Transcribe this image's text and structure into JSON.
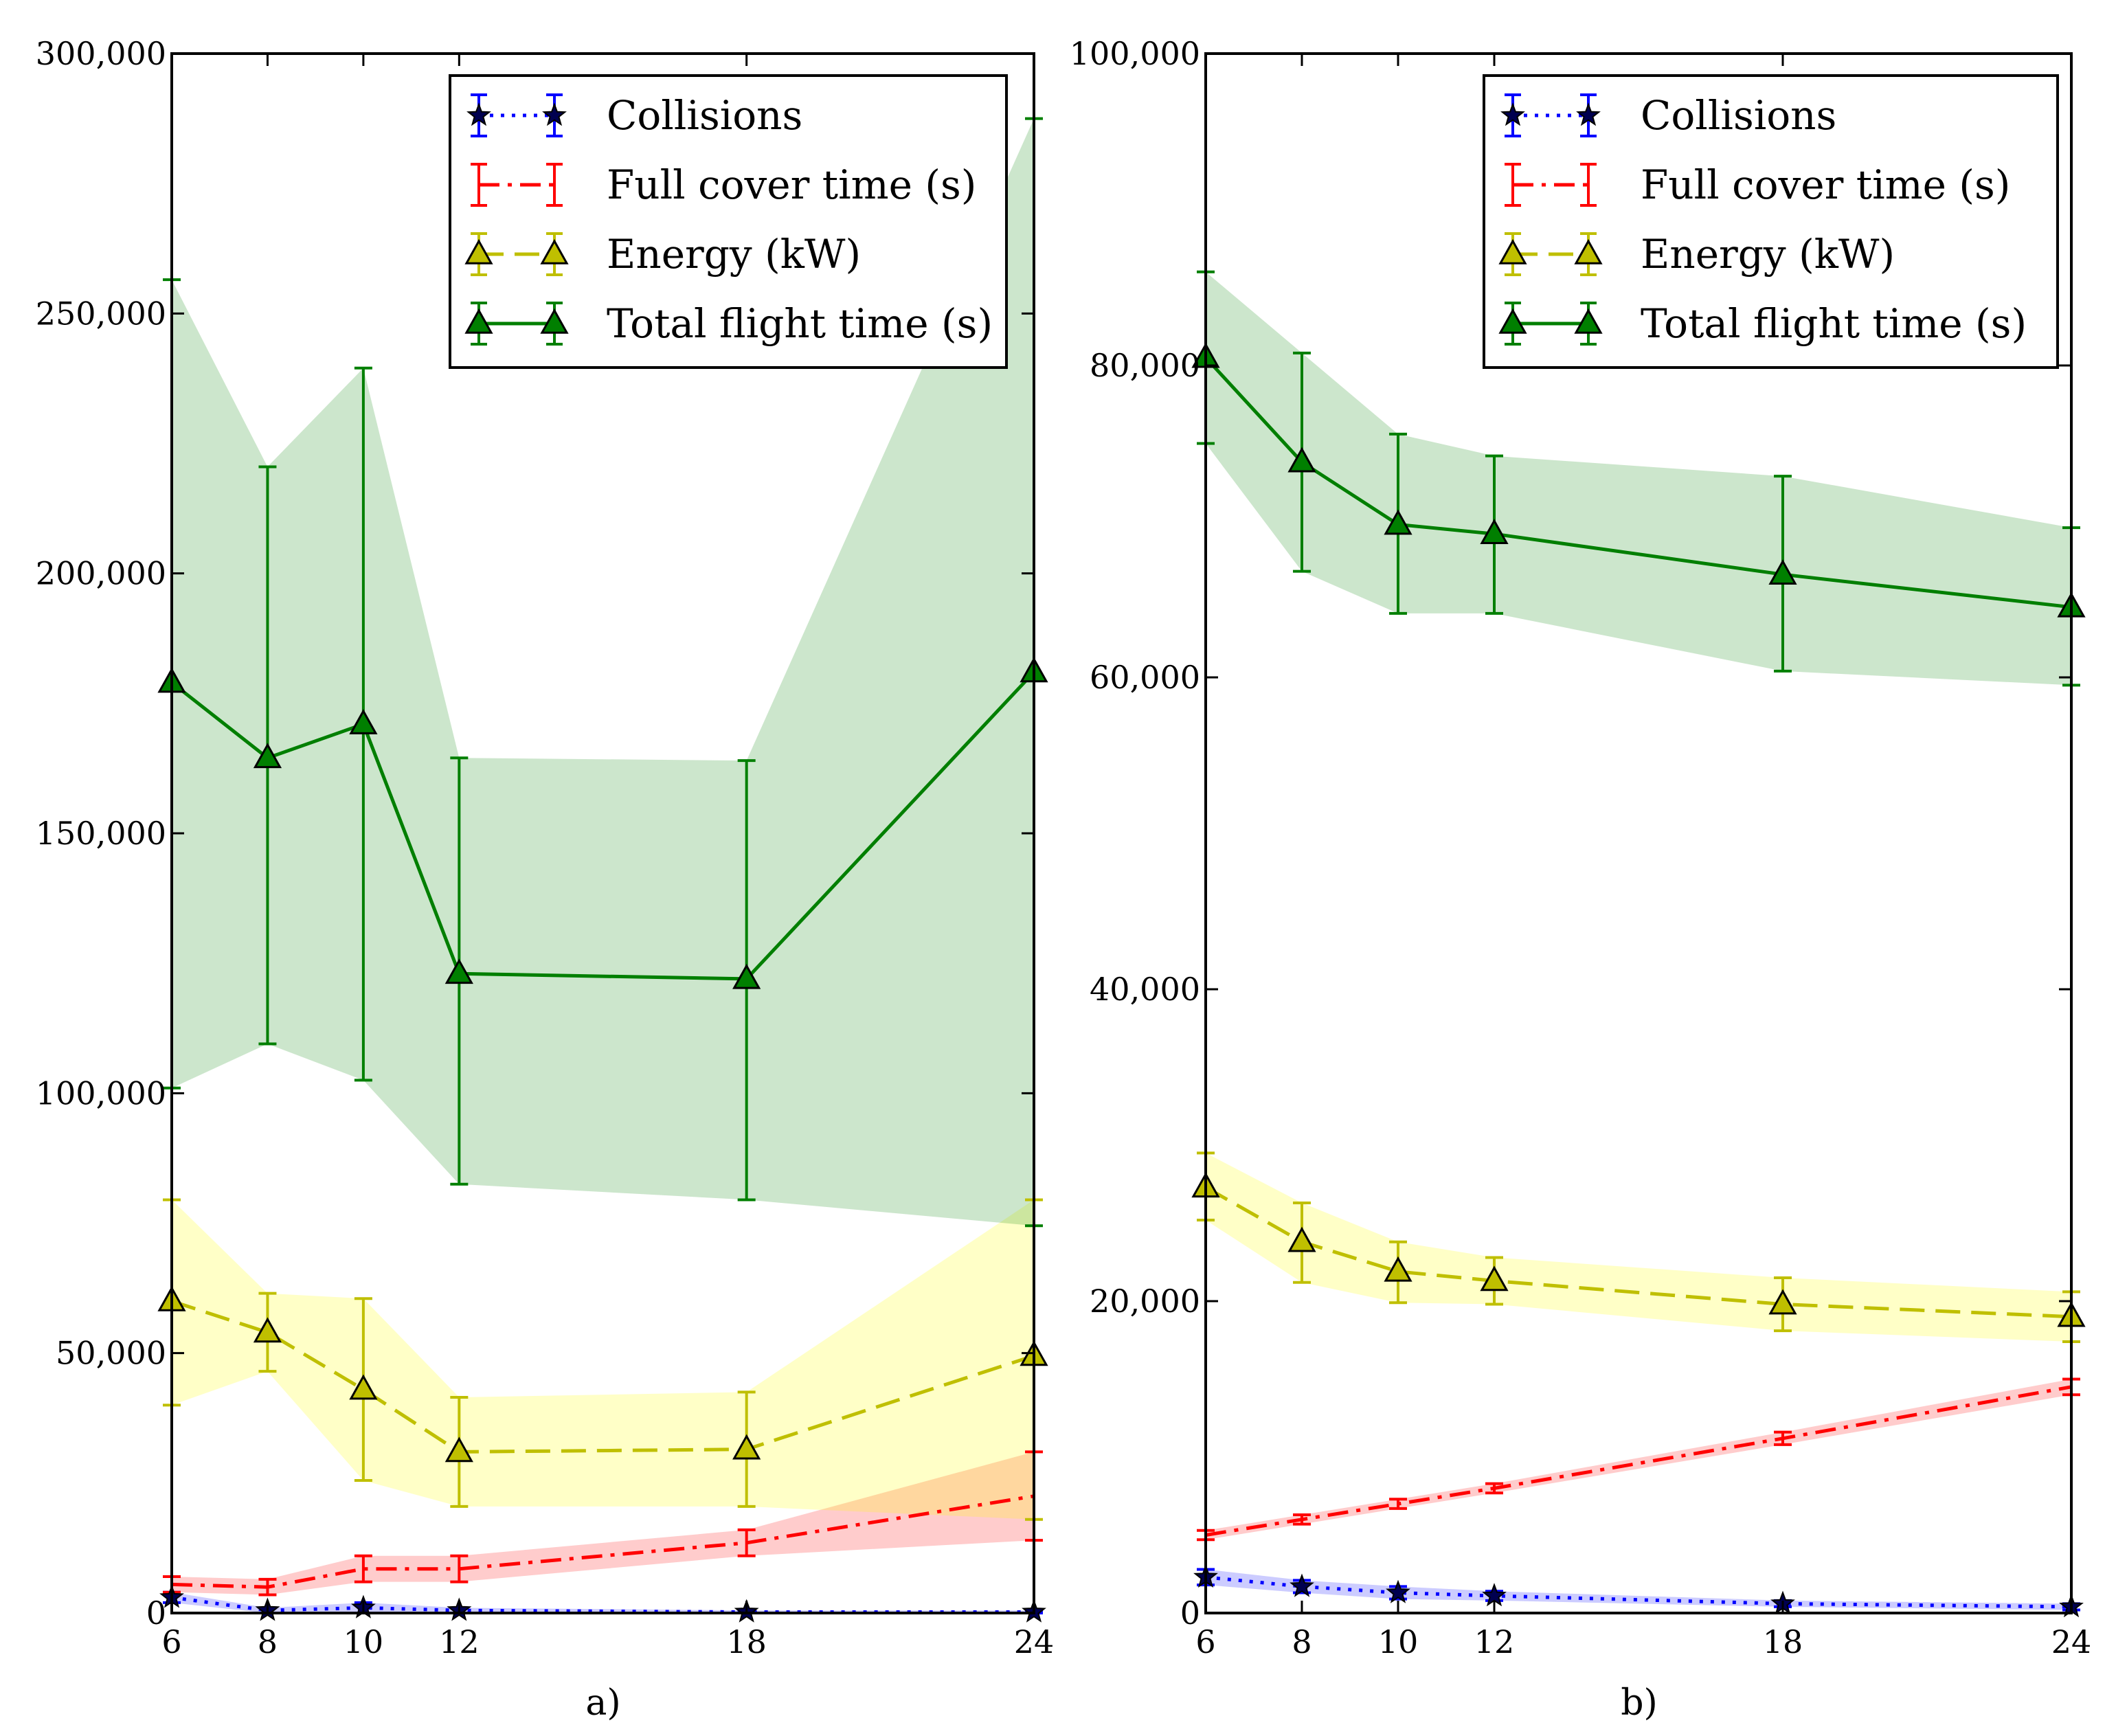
{
  "chart_data": [
    {
      "type": "line",
      "panel_label": "a)",
      "x": [
        6,
        8,
        10,
        12,
        18,
        24
      ],
      "xticks": [
        "6",
        "8",
        "10",
        "12",
        "18",
        "24"
      ],
      "xlim": [
        6,
        24
      ],
      "ylim": [
        0,
        300000
      ],
      "yticks": [
        0,
        50000,
        100000,
        150000,
        200000,
        250000,
        300000
      ],
      "ytick_labels": [
        "0",
        "50,000",
        "100,000",
        "150,000",
        "200,000",
        "250,000",
        "300,000"
      ],
      "legend_position": "upper-right",
      "series": [
        {
          "name": "Collisions",
          "color": "#0000ff",
          "band_color": "#0000ff",
          "style": "dotted",
          "marker": "star",
          "values": [
            3000,
            500,
            1000,
            500,
            200,
            200
          ],
          "err_low": [
            2000,
            0,
            0,
            0,
            0,
            0
          ],
          "err_high": [
            4000,
            1000,
            2000,
            1000,
            500,
            500
          ]
        },
        {
          "name": "Full cover time (s)",
          "color": "#ff0000",
          "band_color": "#ff0000",
          "style": "dashdot",
          "marker": "none",
          "values": [
            5500,
            5000,
            8500,
            8500,
            13500,
            22500
          ],
          "err_low": [
            4000,
            3500,
            6000,
            6000,
            11000,
            14000
          ],
          "err_high": [
            7000,
            6500,
            11000,
            11000,
            16000,
            31000
          ]
        },
        {
          "name": "Energy (kW)",
          "color": "#bfbf00",
          "band_color": "#ffff00",
          "style": "dashed",
          "marker": "triangle",
          "values": [
            60000,
            54000,
            43000,
            31000,
            31500,
            49500
          ],
          "err_low": [
            40000,
            46500,
            25500,
            20500,
            20500,
            18000
          ],
          "err_high": [
            79500,
            61500,
            60500,
            41500,
            42500,
            79500
          ]
        },
        {
          "name": "Total flight time (s)",
          "color": "#007f00",
          "band_color": "#008000",
          "style": "solid",
          "marker": "triangle",
          "values": [
            179000,
            164500,
            171000,
            123000,
            122000,
            181000
          ],
          "err_low": [
            101000,
            109500,
            102500,
            82500,
            79500,
            74500
          ],
          "err_high": [
            256500,
            220500,
            239500,
            164500,
            164000,
            287500
          ]
        }
      ]
    },
    {
      "type": "line",
      "panel_label": "b)",
      "x": [
        6,
        8,
        10,
        12,
        18,
        24
      ],
      "xticks": [
        "6",
        "8",
        "10",
        "12",
        "18",
        "24"
      ],
      "xlim": [
        6,
        24
      ],
      "ylim": [
        0,
        100000
      ],
      "yticks": [
        0,
        20000,
        40000,
        60000,
        80000,
        100000
      ],
      "ytick_labels": [
        "0",
        "20,000",
        "40,000",
        "60,000",
        "80,000",
        "100,000"
      ],
      "legend_position": "upper-right",
      "series": [
        {
          "name": "Collisions",
          "color": "#0000ff",
          "band_color": "#0000ff",
          "style": "dotted",
          "marker": "star",
          "values": [
            2300,
            1700,
            1300,
            1100,
            600,
            400
          ],
          "err_low": [
            1800,
            1300,
            900,
            800,
            400,
            200
          ],
          "err_high": [
            2800,
            2100,
            1700,
            1400,
            800,
            600
          ]
        },
        {
          "name": "Full cover time (s)",
          "color": "#ff0000",
          "band_color": "#ff0000",
          "style": "dashdot",
          "marker": "none",
          "values": [
            5000,
            6000,
            7000,
            8000,
            11200,
            14500
          ],
          "err_low": [
            4700,
            5700,
            6700,
            7700,
            10800,
            14000
          ],
          "err_high": [
            5300,
            6300,
            7300,
            8300,
            11600,
            15000
          ]
        },
        {
          "name": "Energy (kW)",
          "color": "#bfbf00",
          "band_color": "#ffff00",
          "style": "dashed",
          "marker": "triangle",
          "values": [
            27300,
            23800,
            21900,
            21300,
            19800,
            19000
          ],
          "err_low": [
            25200,
            21200,
            19900,
            19800,
            18100,
            17400
          ],
          "err_high": [
            29500,
            26300,
            23800,
            22800,
            21500,
            20600
          ]
        },
        {
          "name": "Total flight time (s)",
          "color": "#007f00",
          "band_color": "#008000",
          "style": "solid",
          "marker": "triangle",
          "values": [
            80500,
            73800,
            69800,
            69200,
            66600,
            64500
          ],
          "err_low": [
            75000,
            66800,
            64100,
            64100,
            60400,
            59500
          ],
          "err_high": [
            86000,
            80800,
            75600,
            74200,
            72900,
            69600
          ]
        }
      ]
    }
  ]
}
